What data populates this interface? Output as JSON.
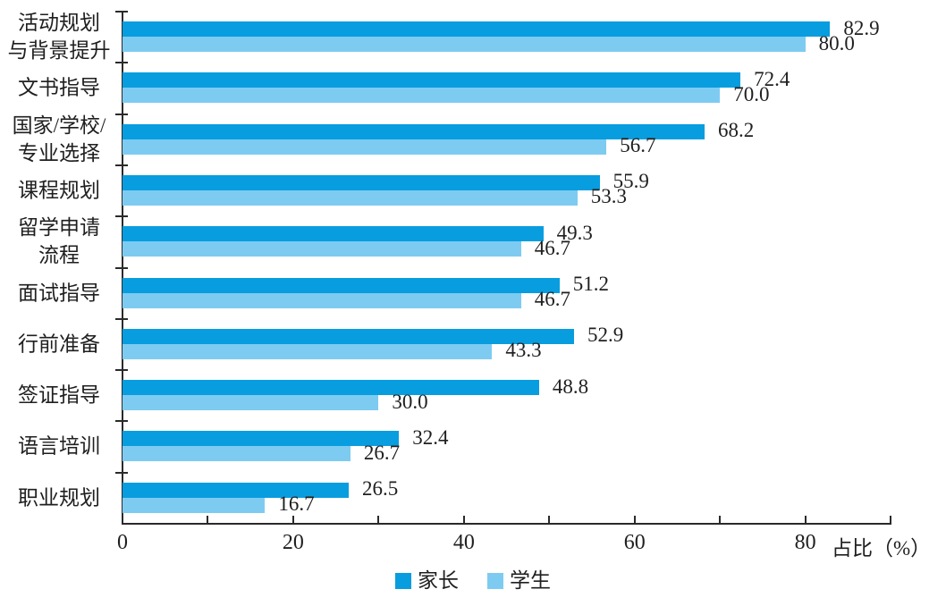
{
  "chart_data": {
    "type": "bar",
    "orientation": "horizontal",
    "title": "",
    "xlabel": "占比（%）",
    "ylabel": "",
    "xlim": [
      0,
      90
    ],
    "x_major_tick_labels": [
      0,
      20,
      40,
      60,
      80
    ],
    "x_minor_tick_step": 10,
    "grid": false,
    "legend_position": "bottom-center",
    "value_labels": true,
    "value_label_decimals": 1,
    "categories": [
      "活动规划\n与背景提升",
      "文书指导",
      "国家/学校/\n专业选择",
      "课程规划",
      "留学申请\n流程",
      "面试指导",
      "行前准备",
      "签证指导",
      "语言培训",
      "职业规划"
    ],
    "series": [
      {
        "name": "家长",
        "color": "#089ddf",
        "values": [
          82.9,
          72.4,
          68.2,
          55.9,
          49.3,
          51.2,
          52.9,
          48.8,
          32.4,
          26.5
        ]
      },
      {
        "name": "学生",
        "color": "#7ecbf1",
        "values": [
          80.0,
          70.0,
          56.7,
          53.3,
          46.7,
          46.7,
          43.3,
          30.0,
          26.7,
          16.7
        ]
      }
    ],
    "colors": {
      "axis": "#2a2a2a",
      "text": "#1f1f1f",
      "background": "#ffffff"
    }
  }
}
